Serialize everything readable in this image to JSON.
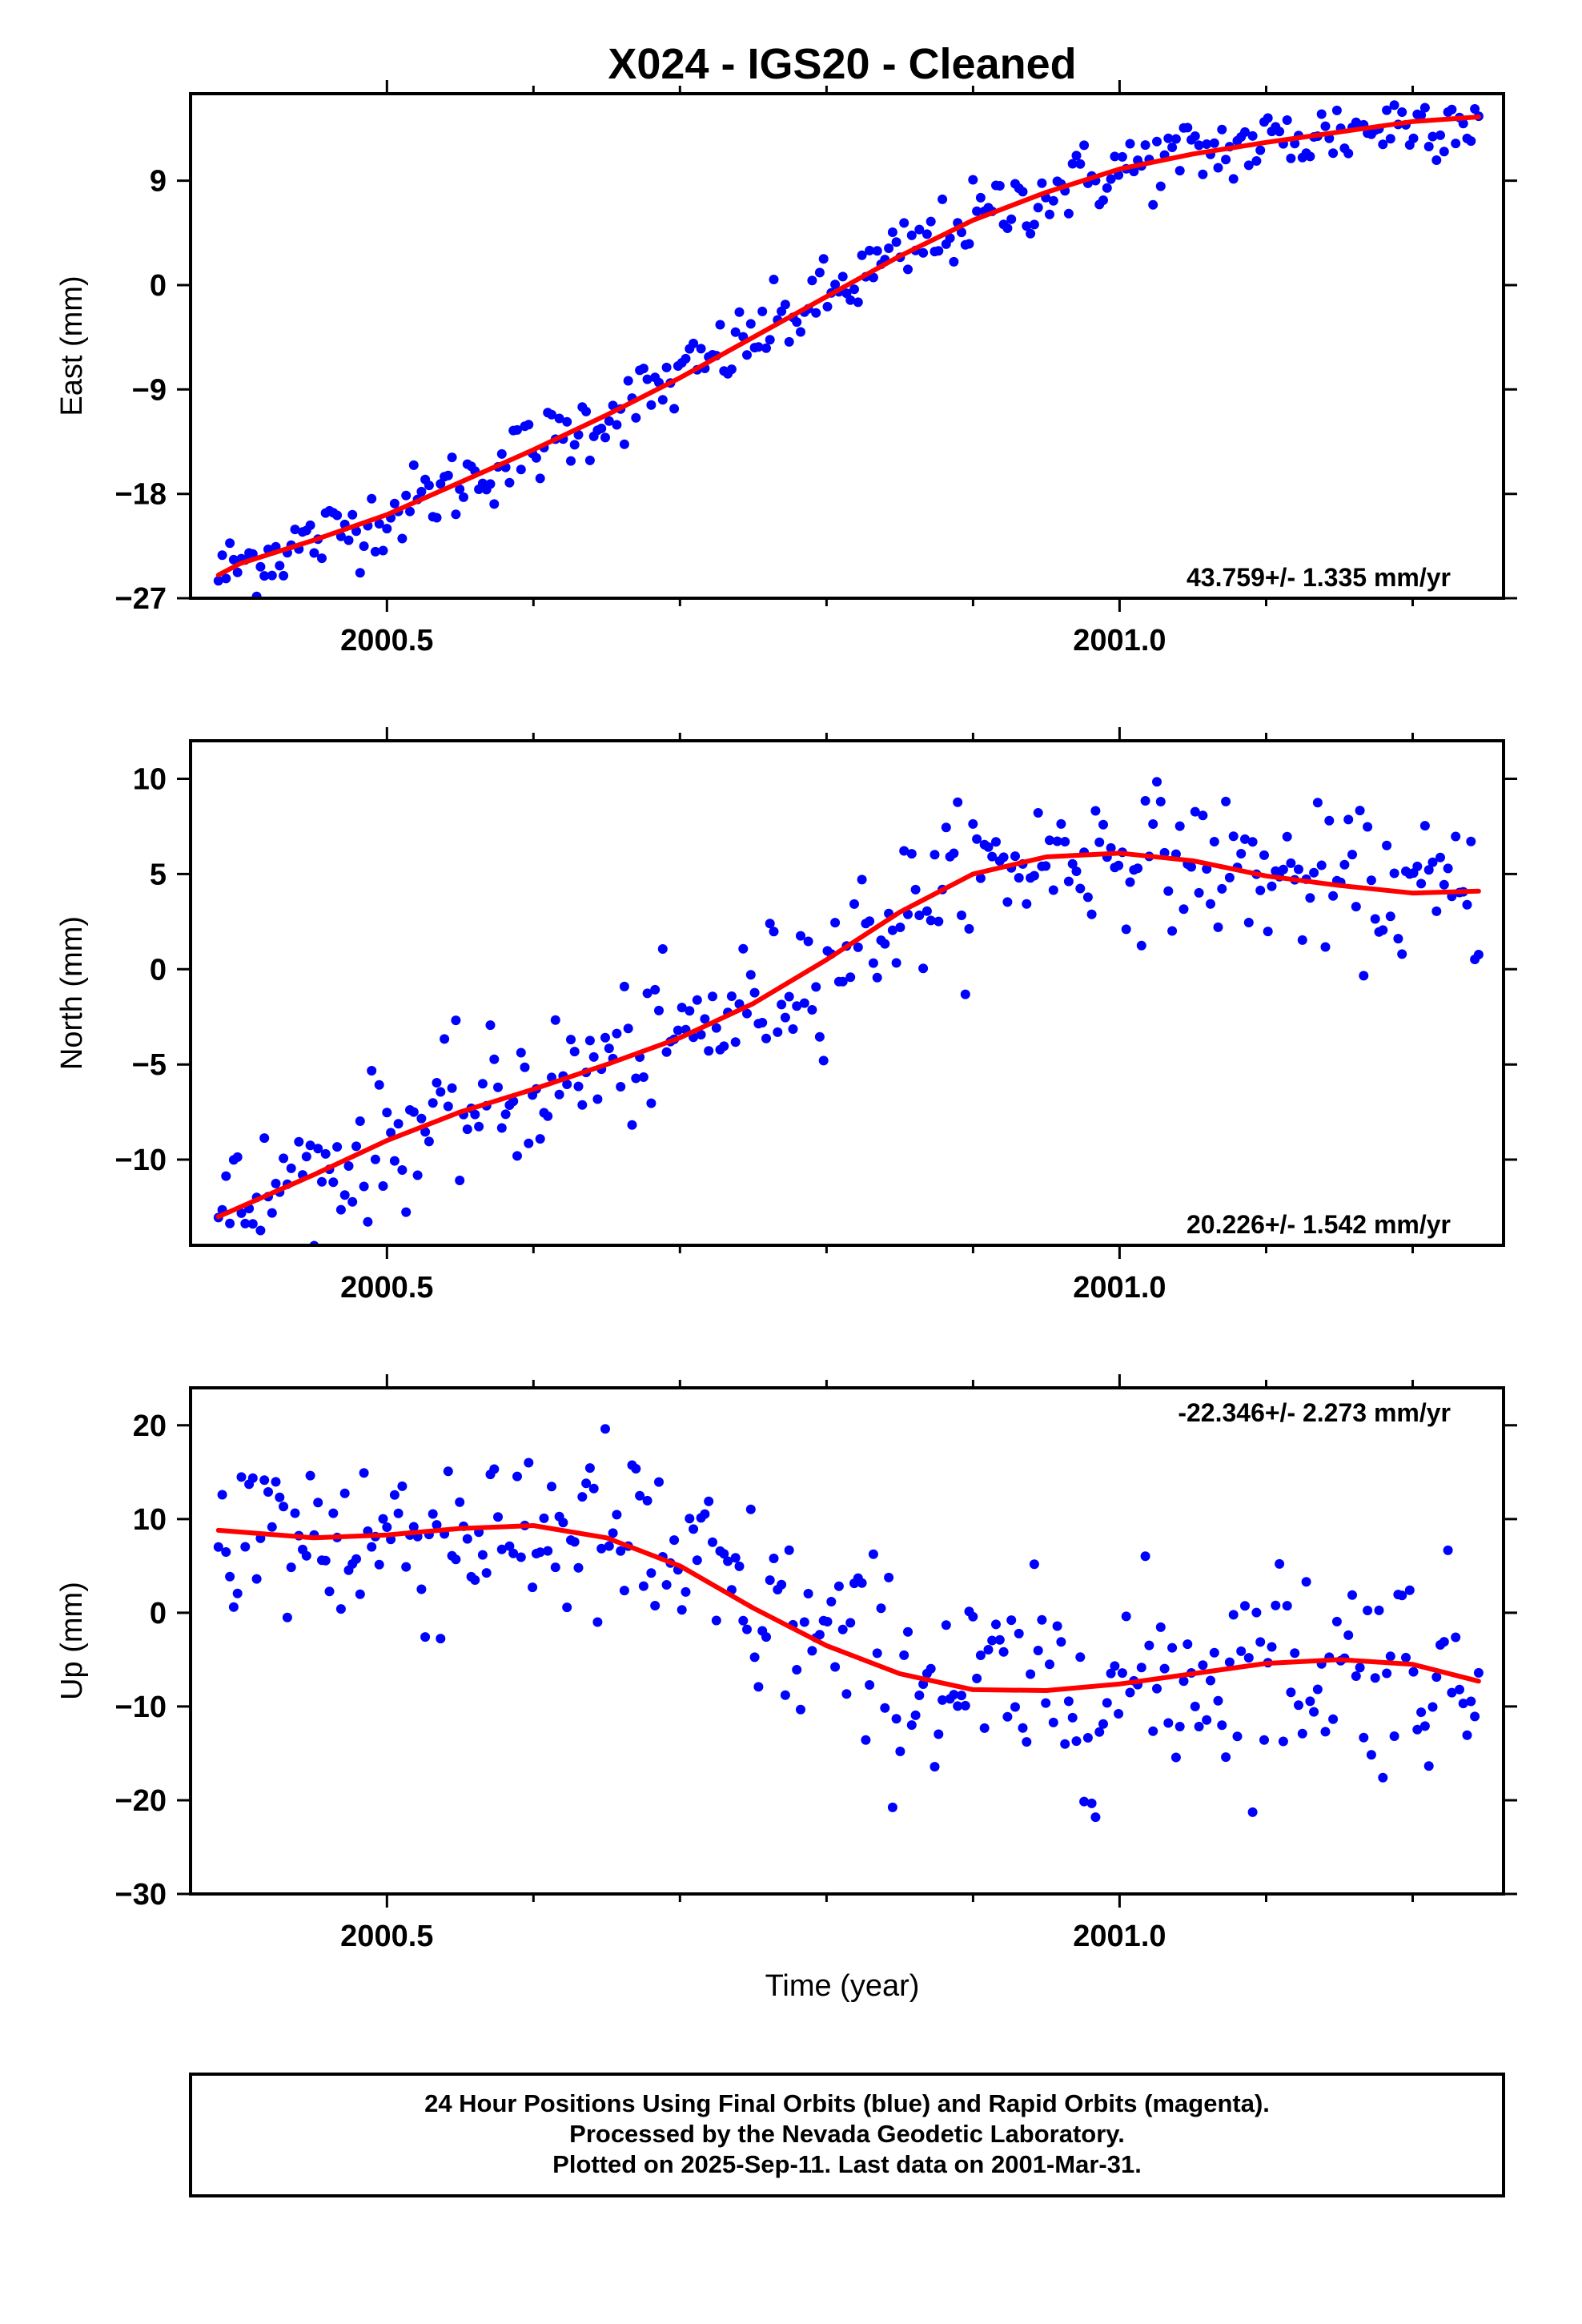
{
  "title": "X024  - IGS20 - Cleaned",
  "x_axis_label": "Time (year)",
  "footer": {
    "line1": "24 Hour Positions Using Final Orbits (blue) and Rapid Orbits (magenta).",
    "line2": "Processed by the Nevada Geodetic Laboratory.",
    "line3": "Plotted on 2025-Sep-11. Last data on 2001-Mar-31."
  },
  "colors": {
    "points": "#0000ff",
    "fit": "#ff0000",
    "frame": "#000000"
  },
  "chart_data": [
    {
      "type": "scatter",
      "ylabel": "East (mm)",
      "rate_label": "43.759+/- 1.335 mm/yr",
      "rate_position": "bottom-right",
      "xlim": [
        2000.366,
        2001.262
      ],
      "ylim": [
        -27,
        16.5
      ],
      "xticks": [
        2000.5,
        2001.0
      ],
      "xtick_labels": [
        "2000.5",
        "2001.0"
      ],
      "xminor": [
        2000.6,
        2000.7,
        2000.8,
        2000.9,
        2001.1,
        2001.2
      ],
      "yticks": [
        -27,
        -18,
        -9,
        0,
        9
      ],
      "ytick_labels": [
        "−27",
        "−18",
        "−9",
        "0",
        "9"
      ],
      "fit": {
        "x": [
          2000.385,
          2000.4,
          2000.45,
          2000.5,
          2000.55,
          2000.6,
          2000.65,
          2000.7,
          2000.75,
          2000.8,
          2000.85,
          2000.9,
          2000.95,
          2001.0,
          2001.05,
          2001.1,
          2001.15,
          2001.2,
          2001.245
        ],
        "y": [
          -25.0,
          -24.0,
          -22.0,
          -19.8,
          -17.0,
          -14.2,
          -11.2,
          -8.0,
          -4.5,
          -1.0,
          2.5,
          5.6,
          8.0,
          10.0,
          11.3,
          12.3,
          13.2,
          14.1,
          14.5
        ]
      },
      "scatter_noise_mm": 1.6,
      "series": [
        {
          "name": "Final Orbits",
          "color": "#0000ff",
          "n_points": 330
        }
      ]
    },
    {
      "type": "scatter",
      "ylabel": "North (mm)",
      "rate_label": "20.226+/- 1.542 mm/yr",
      "rate_position": "bottom-right",
      "xlim": [
        2000.366,
        2001.262
      ],
      "ylim": [
        -14.5,
        12
      ],
      "xticks": [
        2000.5,
        2001.0
      ],
      "xtick_labels": [
        "2000.5",
        "2001.0"
      ],
      "xminor": [
        2000.6,
        2000.7,
        2000.8,
        2000.9,
        2001.1,
        2001.2
      ],
      "yticks": [
        -10,
        -5,
        0,
        5,
        10
      ],
      "ytick_labels": [
        "−10",
        "−5",
        "0",
        "5",
        "10"
      ],
      "fit": {
        "x": [
          2000.385,
          2000.45,
          2000.5,
          2000.55,
          2000.6,
          2000.65,
          2000.7,
          2000.75,
          2000.8,
          2000.85,
          2000.9,
          2000.95,
          2001.0,
          2001.05,
          2001.1,
          2001.15,
          2001.2,
          2001.245
        ],
        "y": [
          -13.0,
          -10.8,
          -9.0,
          -7.5,
          -6.3,
          -5.0,
          -3.6,
          -1.8,
          0.5,
          3.0,
          5.0,
          5.9,
          6.1,
          5.7,
          4.9,
          4.4,
          4.0,
          4.1
        ]
      },
      "scatter_noise_mm": 1.8,
      "series": [
        {
          "name": "Final Orbits",
          "color": "#0000ff",
          "n_points": 330
        }
      ]
    },
    {
      "type": "scatter",
      "ylabel": "Up (mm)",
      "rate_label": "-22.346+/- 2.273 mm/yr",
      "rate_position": "top-right",
      "xlim": [
        2000.366,
        2001.262
      ],
      "ylim": [
        -30,
        24
      ],
      "xticks": [
        2000.5,
        2001.0
      ],
      "xtick_labels": [
        "2000.5",
        "2001.0"
      ],
      "xminor": [
        2000.6,
        2000.7,
        2000.8,
        2000.9,
        2001.1,
        2001.2
      ],
      "yticks": [
        -30,
        -20,
        -10,
        0,
        10,
        20
      ],
      "ytick_labels": [
        "−30",
        "−20",
        "−10",
        "0",
        "10",
        "20"
      ],
      "fit": {
        "x": [
          2000.385,
          2000.45,
          2000.5,
          2000.55,
          2000.6,
          2000.65,
          2000.7,
          2000.75,
          2000.8,
          2000.85,
          2000.9,
          2000.95,
          2001.0,
          2001.05,
          2001.1,
          2001.15,
          2001.2,
          2001.245
        ],
        "y": [
          8.8,
          8.0,
          8.3,
          9.0,
          9.3,
          8.0,
          5.0,
          0.5,
          -3.5,
          -6.5,
          -8.2,
          -8.3,
          -7.6,
          -6.5,
          -5.4,
          -5.0,
          -5.5,
          -7.3
        ]
      },
      "scatter_noise_mm": 5.5,
      "series": [
        {
          "name": "Final Orbits",
          "color": "#0000ff",
          "n_points": 330
        }
      ]
    }
  ]
}
